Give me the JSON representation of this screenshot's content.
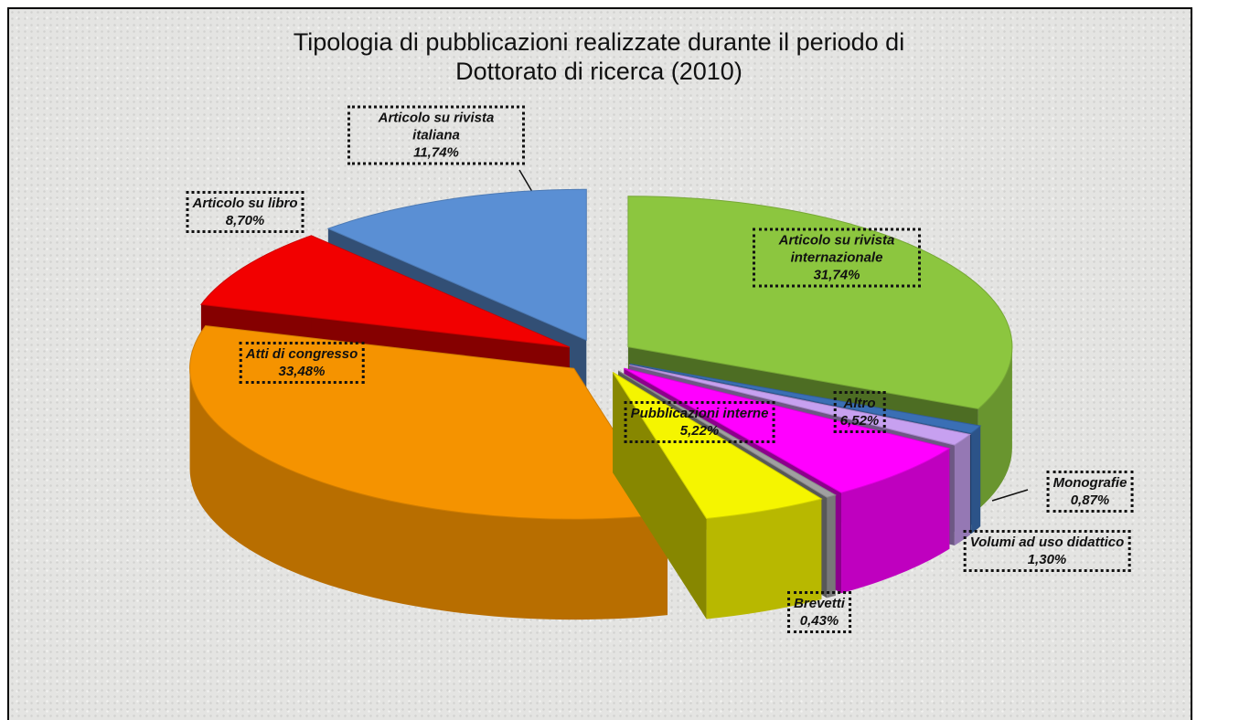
{
  "chart_data": {
    "type": "pie",
    "title": "Tipologia di pubblicazioni realizzate durante il periodo di Dottorato di ricerca (2010)",
    "categories": [
      "Articolo su rivista internazionale",
      "Monografie",
      "Volumi ad uso didattico",
      "Altro",
      "Brevetti",
      "Pubblicazioni interne",
      "Atti di congresso",
      "Articolo su libro",
      "Articolo su rivista italiana"
    ],
    "values": [
      31.74,
      0.87,
      1.3,
      6.52,
      0.43,
      5.22,
      33.48,
      8.7,
      11.74
    ],
    "value_labels": [
      "31,74%",
      "0,87%",
      "1,30%",
      "6,52%",
      "0,43%",
      "5,22%",
      "33,48%",
      "8,70%",
      "11,74%"
    ],
    "colors": [
      "#8cc63f",
      "#3a6fb5",
      "#c7a0f0",
      "#ff00ff",
      "#a0a0a0",
      "#f5f500",
      "#f59300",
      "#f20000",
      "#5a8fd4"
    ]
  }
}
